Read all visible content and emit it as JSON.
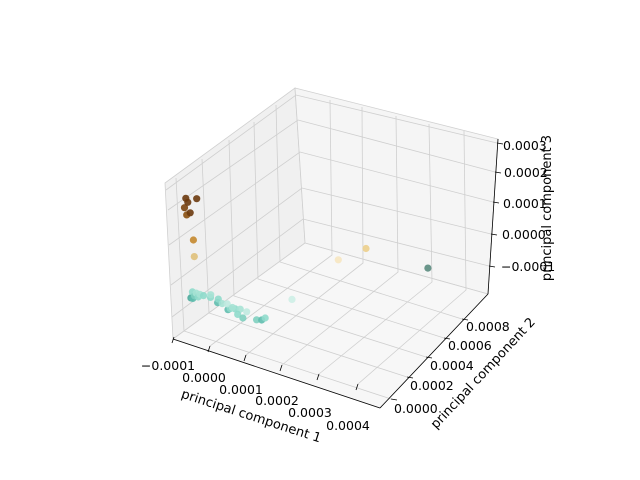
{
  "chart_data": {
    "type": "scatter",
    "projection": "3d",
    "title": "",
    "xlabel": "principal component 1",
    "ylabel": "principal component 2",
    "zlabel": "principal component 3",
    "grid": true,
    "x_ticks": [
      "−0.0001",
      "0.0000",
      "0.0001",
      "0.0002",
      "0.0003",
      "0.0004"
    ],
    "y_ticks": [
      "0.0000",
      "0.0002",
      "0.0004",
      "0.0006",
      "0.0008"
    ],
    "z_ticks": [
      "−0.0001",
      "0.0000",
      "0.0001",
      "0.0002",
      "0.0003"
    ],
    "xlim": [
      -0.00012,
      0.00044
    ],
    "ylim": [
      -8e-05,
      0.00092
    ],
    "zlim": [
      -0.00016,
      0.00031
    ],
    "points": [
      {
        "x": -9.5e-05,
        "y": 0.0,
        "z": 0.00025,
        "color": "#6b3a0e"
      },
      {
        "x": -9e-05,
        "y": 0.0,
        "z": 0.00024,
        "color": "#6b3a0e"
      },
      {
        "x": -0.0001,
        "y": 0.0,
        "z": 0.00022,
        "color": "#7a440f"
      },
      {
        "x": -9.5e-05,
        "y": 0.0,
        "z": 0.0002,
        "color": "#8a5010"
      },
      {
        "x": -8.5e-05,
        "y": 0.0,
        "z": 0.00021,
        "color": "#6b3a0e"
      },
      {
        "x": -6.5e-05,
        "y": 0.0,
        "z": 0.00026,
        "color": "#6b3a0e"
      },
      {
        "x": -8e-05,
        "y": 0.0,
        "z": 0.00013,
        "color": "#c4882e"
      },
      {
        "x": -8e-05,
        "y": 0.0,
        "z": 8e-05,
        "color": "#dfc07a"
      },
      {
        "x": -9e-05,
        "y": 0.0,
        "z": -3e-05,
        "color": "#8fdacb"
      },
      {
        "x": -8e-05,
        "y": 0.0,
        "z": -3e-05,
        "color": "#a6e2d4"
      },
      {
        "x": -7e-05,
        "y": 0.0,
        "z": -3e-05,
        "color": "#a6e2d4"
      },
      {
        "x": -6e-05,
        "y": 0.0,
        "z": -3e-05,
        "color": "#8fdacb"
      },
      {
        "x": -4e-05,
        "y": 0.0,
        "z": -2e-05,
        "color": "#a6e2d4"
      },
      {
        "x": -8.5e-05,
        "y": 0.0,
        "z": -4e-05,
        "color": "#7fcfbf"
      },
      {
        "x": -7.5e-05,
        "y": 0.0,
        "z": -4e-05,
        "color": "#8fdacb"
      },
      {
        "x": -9.5e-05,
        "y": 0.0,
        "z": -5e-05,
        "color": "#4aa89a"
      },
      {
        "x": -9e-05,
        "y": 0.0,
        "z": -5e-05,
        "color": "#5fbcae"
      },
      {
        "x": -6e-05,
        "y": 5e-05,
        "z": -5e-05,
        "color": "#8fdacb"
      },
      {
        "x": -5e-05,
        "y": 8e-05,
        "z": -6e-05,
        "color": "#8fdacb"
      },
      {
        "x": -6e-05,
        "y": 0.0001,
        "z": -8e-05,
        "color": "#5fbcae"
      },
      {
        "x": -4e-05,
        "y": 8e-05,
        "z": -7e-05,
        "color": "#a6e2d4"
      },
      {
        "x": -3e-05,
        "y": 9e-05,
        "z": -7e-05,
        "color": "#bfe9df"
      },
      {
        "x": -2e-05,
        "y": 0.0001,
        "z": -8e-05,
        "color": "#a6e2d4"
      },
      {
        "x": -3e-05,
        "y": 0.00011,
        "z": -9e-05,
        "color": "#8fdacb"
      },
      {
        "x": -2e-05,
        "y": 0.00012,
        "z": -9e-05,
        "color": "#8fdacb"
      },
      {
        "x": -1e-05,
        "y": 0.00013,
        "z": -9e-05,
        "color": "#a6e2d4"
      },
      {
        "x": -4e-05,
        "y": 0.00012,
        "z": -0.0001,
        "color": "#5fbcae"
      },
      {
        "x": -1e-05,
        "y": 0.00011,
        "z": -0.0001,
        "color": "#8fdacb"
      },
      {
        "x": 0.0,
        "y": 0.00015,
        "z": -0.0001,
        "color": "#bfe9df"
      },
      {
        "x": 0.0,
        "y": 0.00012,
        "z": -0.00011,
        "color": "#7fcfbf"
      },
      {
        "x": 3e-05,
        "y": 0.00014,
        "z": -0.00011,
        "color": "#7fcfbf"
      },
      {
        "x": 4e-05,
        "y": 0.00015,
        "z": -0.00011,
        "color": "#5fbcae"
      },
      {
        "x": 5e-05,
        "y": 0.00015,
        "z": -0.0001,
        "color": "#8fdacb"
      },
      {
        "x": 7e-05,
        "y": 0.0003,
        "z": -8e-05,
        "color": "#cdeee6"
      },
      {
        "x": 9e-05,
        "y": 0.0006,
        "z": -4e-05,
        "color": "#f6e6c0"
      },
      {
        "x": 0.00013,
        "y": 0.0007,
        "z": -2e-05,
        "color": "#eccf8c"
      },
      {
        "x": 0.00026,
        "y": 0.0008,
        "z": -6e-05,
        "color": "#5b8c80"
      }
    ]
  }
}
